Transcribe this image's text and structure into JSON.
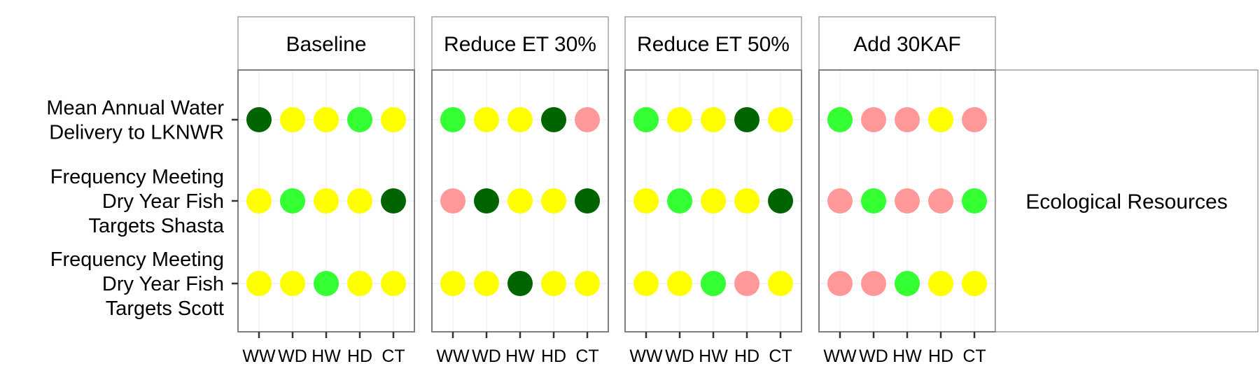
{
  "chart_data": {
    "type": "dot-matrix",
    "facets": [
      "Baseline",
      "Reduce ET 30%",
      "Reduce ET 50%",
      "Add 30KAF"
    ],
    "categories": [
      "WW",
      "WD",
      "HW",
      "HD",
      "CT"
    ],
    "rows": [
      "Mean Annual Water Delivery to LKNWR",
      "Frequency Meeting Dry Year Fish Targets Shasta",
      "Frequency Meeting Dry Year Fish Targets Scott"
    ],
    "row_label_lines": [
      [
        "Mean Annual Water",
        "Delivery to LKNWR"
      ],
      [
        "Frequency Meeting",
        "Dry Year Fish",
        "Targets Shasta"
      ],
      [
        "Frequency Meeting",
        "Dry Year Fish",
        "Targets Scott"
      ]
    ],
    "group_label": "Ecological Resources",
    "colors": {
      "dark_green": "#006400",
      "green": "#33ff33",
      "yellow": "#ffff00",
      "pink": "#ff9999"
    },
    "values": [
      [
        [
          "dark_green",
          "yellow",
          "yellow",
          "green",
          "yellow"
        ],
        [
          "yellow",
          "green",
          "yellow",
          "yellow",
          "dark_green"
        ],
        [
          "yellow",
          "yellow",
          "green",
          "yellow",
          "yellow"
        ]
      ],
      [
        [
          "green",
          "yellow",
          "yellow",
          "dark_green",
          "pink"
        ],
        [
          "pink",
          "dark_green",
          "yellow",
          "yellow",
          "dark_green"
        ],
        [
          "yellow",
          "yellow",
          "dark_green",
          "yellow",
          "yellow"
        ]
      ],
      [
        [
          "green",
          "yellow",
          "yellow",
          "dark_green",
          "yellow"
        ],
        [
          "yellow",
          "green",
          "yellow",
          "yellow",
          "dark_green"
        ],
        [
          "yellow",
          "yellow",
          "green",
          "pink",
          "yellow"
        ]
      ],
      [
        [
          "green",
          "pink",
          "pink",
          "yellow",
          "pink"
        ],
        [
          "pink",
          "green",
          "pink",
          "pink",
          "green"
        ],
        [
          "pink",
          "pink",
          "green",
          "yellow",
          "yellow"
        ]
      ]
    ]
  }
}
